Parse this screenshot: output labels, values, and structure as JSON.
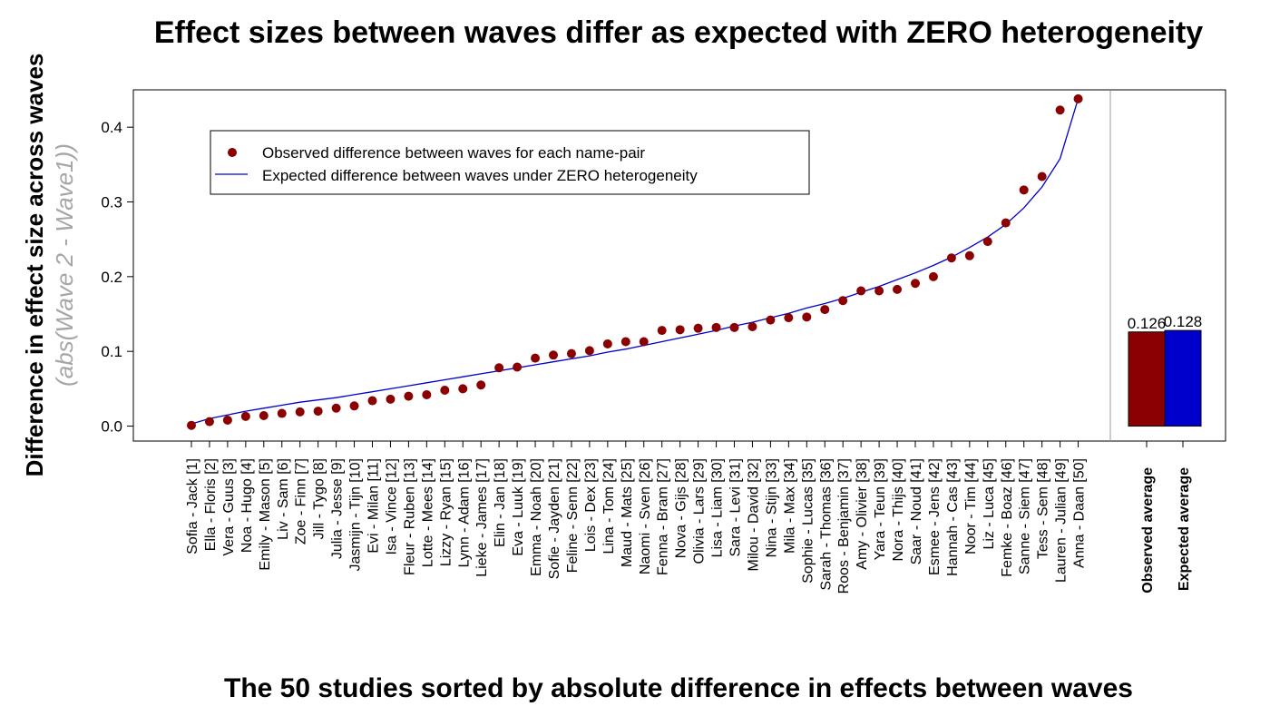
{
  "chart_data": {
    "type": "scatter",
    "title": "Effect sizes between waves differ as expected with ZERO heterogeneity",
    "xlabel": "The 50 studies sorted by absolute difference in effects between waves",
    "ylabel": "Difference in effect size across waves",
    "ylabel_sub": "(abs(Wave 2 - Wave1))",
    "ylim": [
      -0.02,
      0.45
    ],
    "yticks": [
      "0.0",
      "0.1",
      "0.2",
      "0.3",
      "0.4"
    ],
    "legend": {
      "placement": "top-left",
      "items": [
        {
          "label": "Observed difference between waves for each name-pair",
          "marker": "point",
          "color": "#8B0000"
        },
        {
          "label": "Expected difference between waves under ZERO heterogeneity",
          "marker": "line",
          "color": "#0000CD"
        }
      ]
    },
    "categories": [
      "Sofia - Jack [1]",
      "Ella - Floris [2]",
      "Vera - Guus [3]",
      "Noa - Hugo [4]",
      "Emily - Mason [5]",
      "Liv - Sam [6]",
      "Zoe - Finn [7]",
      "Jill - Tygo [8]",
      "Julia - Jesse [9]",
      "Jasmijn - Tijn [10]",
      "Evi - Milan [11]",
      "Isa - Vince [12]",
      "Fleur - Ruben [13]",
      "Lotte - Mees [14]",
      "Lizzy - Ryan [15]",
      "Lynn - Adam [16]",
      "Lieke - James [17]",
      "Elin - Jan [18]",
      "Eva - Luuk [19]",
      "Emma - Noah [20]",
      "Sofie - Jayden [21]",
      "Feline - Senn [22]",
      "Lois - Dex [23]",
      "Lina - Tom [24]",
      "Maud - Mats [25]",
      "Naomi - Sven [26]",
      "Fenna - Bram [27]",
      "Nova - Gijs [28]",
      "Olivia - Lars [29]",
      "Lisa - Liam [30]",
      "Sara - Levi [31]",
      "Milou - David [32]",
      "Nina - Stijn [33]",
      "Mila - Max [34]",
      "Sophie - Lucas [35]",
      "Sarah - Thomas [36]",
      "Roos - Benjamin [37]",
      "Amy - Olivier [38]",
      "Yara - Teun [39]",
      "Nora - Thijs [40]",
      "Saar - Noud [41]",
      "Esmee - Jens [42]",
      "Hannah - Cas [43]",
      "Noor - Tim [44]",
      "Liz - Luca [45]",
      "Femke - Boaz [46]",
      "Sanne - Siem [47]",
      "Tess - Sem [48]",
      "Lauren - Julian [49]",
      "Anna - Daan [50]"
    ],
    "series": [
      {
        "name": "Observed difference between waves for each name-pair",
        "type": "scatter",
        "color": "#8B0000",
        "values": [
          0.001,
          0.006,
          0.008,
          0.013,
          0.014,
          0.017,
          0.019,
          0.02,
          0.024,
          0.027,
          0.034,
          0.036,
          0.04,
          0.042,
          0.048,
          0.05,
          0.055,
          0.078,
          0.079,
          0.091,
          0.095,
          0.097,
          0.101,
          0.11,
          0.113,
          0.113,
          0.128,
          0.129,
          0.131,
          0.132,
          0.132,
          0.133,
          0.142,
          0.145,
          0.146,
          0.156,
          0.168,
          0.181,
          0.181,
          0.183,
          0.191,
          0.2,
          0.225,
          0.228,
          0.247,
          0.272,
          0.316,
          0.334,
          0.423,
          0.438
        ]
      },
      {
        "name": "Expected difference between waves under ZERO heterogeneity",
        "type": "line",
        "color": "#0000CD",
        "values": [
          0.003,
          0.01,
          0.015,
          0.02,
          0.024,
          0.028,
          0.032,
          0.035,
          0.038,
          0.042,
          0.046,
          0.05,
          0.054,
          0.058,
          0.062,
          0.066,
          0.07,
          0.074,
          0.078,
          0.082,
          0.086,
          0.09,
          0.094,
          0.099,
          0.103,
          0.108,
          0.113,
          0.118,
          0.123,
          0.128,
          0.134,
          0.139,
          0.145,
          0.151,
          0.158,
          0.164,
          0.171,
          0.179,
          0.187,
          0.196,
          0.205,
          0.215,
          0.226,
          0.239,
          0.253,
          0.27,
          0.292,
          0.32,
          0.358,
          0.438
        ]
      }
    ],
    "summary_bars": {
      "categories": [
        "Observed average",
        "Expected average"
      ],
      "values": [
        0.126,
        0.128
      ],
      "value_labels": [
        "0.126",
        "0.128"
      ],
      "colors": [
        "#8B0000",
        "#0000CD"
      ]
    }
  }
}
